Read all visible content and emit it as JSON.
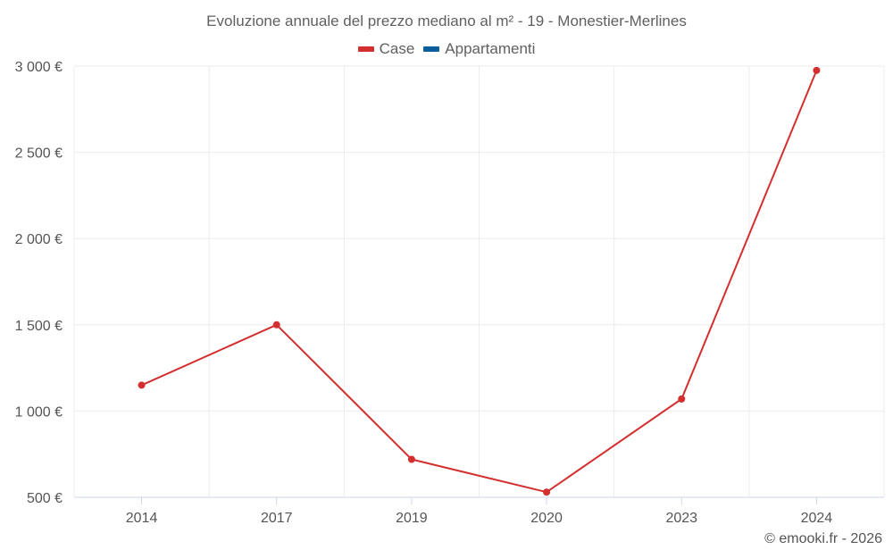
{
  "chart_data": {
    "type": "line",
    "title": "Evoluzione annuale del prezzo mediano al m² - 19 - Monestier-Merlines",
    "categories": [
      "2014",
      "2017",
      "2019",
      "2020",
      "2023",
      "2024"
    ],
    "series": [
      {
        "name": "Case",
        "color": "#d32f2f",
        "values": [
          1150,
          1500,
          720,
          530,
          1070,
          2975
        ]
      },
      {
        "name": "Appartamenti",
        "color": "#0b5e9c",
        "values": [
          null,
          null,
          null,
          null,
          null,
          null
        ]
      }
    ],
    "ylim": [
      500,
      3000
    ],
    "yticks": [
      500,
      1000,
      1500,
      2000,
      2500,
      3000
    ],
    "ytick_labels": [
      "500 €",
      "1 000 €",
      "1 500 €",
      "2 000 €",
      "2 500 €",
      "3 000 €"
    ],
    "xlabel": "",
    "ylabel": "",
    "grid": true,
    "legend": "top-center"
  },
  "credit": "© emooki.fr - 2026"
}
